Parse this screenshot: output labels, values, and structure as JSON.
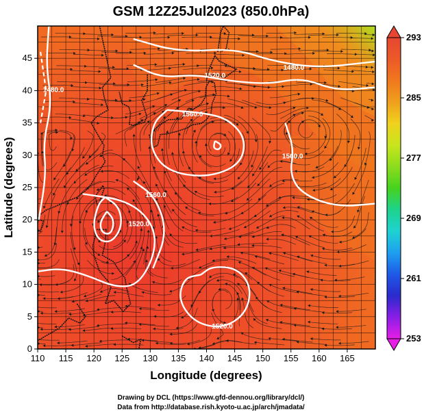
{
  "title": "GSM 12Z25Jul2023 (850.0hPa)",
  "xlabel": "Longitude (degrees)",
  "ylabel": "Latitude (degrees)",
  "credits": [
    "Drawing by DCL (https://www.gfd-dennou.org/library/dcl/)",
    "Data from http://database.rish.kyoto-u.ac.jp/arch/jmadata/"
  ],
  "map": {
    "xlim": [
      110,
      170
    ],
    "ylim": [
      0,
      50
    ],
    "xticks": [
      110,
      115,
      120,
      125,
      130,
      135,
      140,
      145,
      150,
      155,
      160,
      165
    ],
    "yticks": [
      0,
      5,
      10,
      15,
      20,
      25,
      30,
      35,
      40,
      45
    ],
    "grid": true,
    "grid_spacing_deg": 2.5
  },
  "colorbar": {
    "min": 253,
    "max": 293,
    "ticks": [
      293,
      285,
      277,
      269,
      261,
      253
    ],
    "colors": [
      "#e61ee6",
      "#8a1ee6",
      "#2a2acc",
      "#1e5ae6",
      "#1ea0f0",
      "#1ed2d2",
      "#1ed28c",
      "#46d21e",
      "#8cdc1e",
      "#c8e61e",
      "#f0d21e",
      "#f0a01e",
      "#f0781e",
      "#ec5a28",
      "#e64632"
    ]
  },
  "contours": [
    {
      "value": "1480.0",
      "label_lon": 112.8,
      "label_lat": 39.8
    },
    {
      "value": "1480.0",
      "label_lon": 155.5,
      "label_lat": 43.2
    },
    {
      "value": "1520.0",
      "label_lon": 141.5,
      "label_lat": 42.0
    },
    {
      "value": "1560.0",
      "label_lon": 137.5,
      "label_lat": 36.0
    },
    {
      "value": "1560.0",
      "label_lon": 155.3,
      "label_lat": 29.5
    },
    {
      "value": "1520.0",
      "label_lon": 128.0,
      "label_lat": 19.0
    },
    {
      "value": "1560.0",
      "label_lon": 131.0,
      "label_lat": 23.5
    },
    {
      "value": "1520.0",
      "label_lon": 142.8,
      "label_lat": 3.2
    }
  ],
  "features": {
    "cyclone_center": {
      "lon": 122.5,
      "lat": 19.0
    },
    "anticyclone_center": {
      "lon": 142.0,
      "lat": 31.5
    },
    "low_center": {
      "lon": 143.0,
      "lat": 8.0
    }
  }
}
